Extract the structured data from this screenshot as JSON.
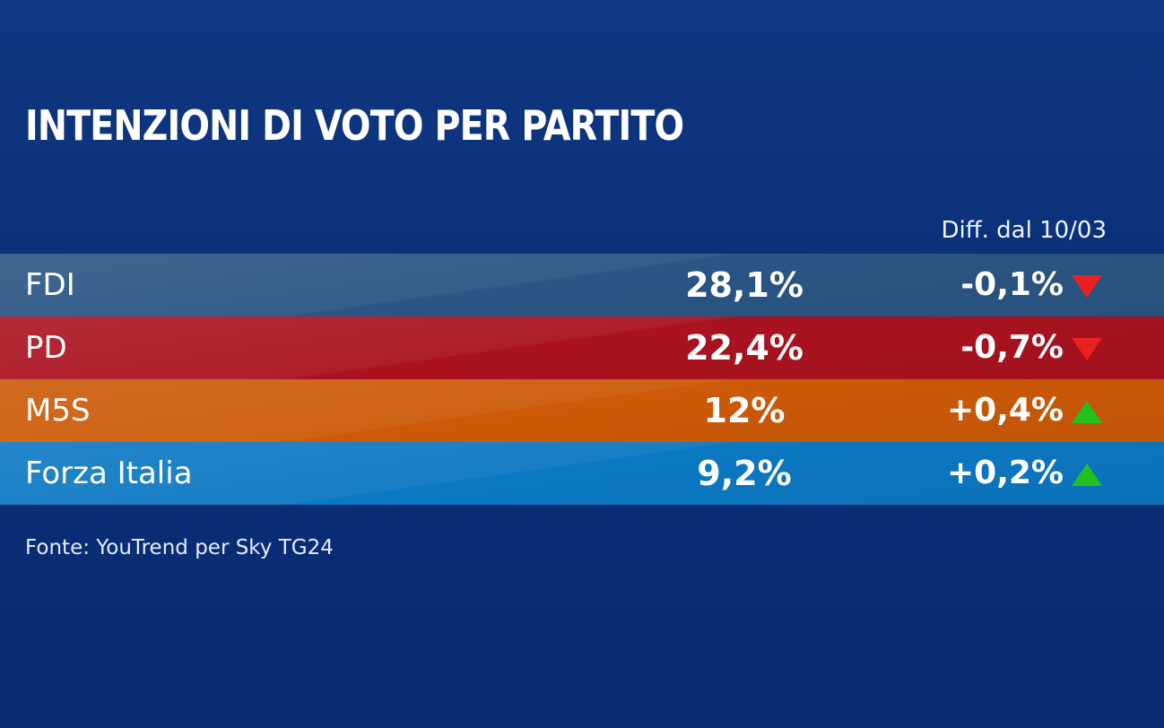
{
  "chart_data": {
    "type": "table",
    "title": "INTENZIONI DI VOTO PER PARTITO",
    "diff_header": "Diff. dal 10/03",
    "source": "Fonte: YouTrend per Sky TG24",
    "rows": [
      {
        "party": "FDI",
        "value_label": "28,1%",
        "value": 28.1,
        "diff_label": "-0,1%",
        "diff": -0.1,
        "trend": "down",
        "color": "#2a5584"
      },
      {
        "party": "PD",
        "value_label": "22,4%",
        "value": 22.4,
        "diff_label": "-0,7%",
        "diff": -0.7,
        "trend": "down",
        "color": "#ab1220"
      },
      {
        "party": "M5S",
        "value_label": "12%",
        "value": 12,
        "diff_label": "+0,4%",
        "diff": 0.4,
        "trend": "up",
        "color": "#cc5a08"
      },
      {
        "party": "Forza Italia",
        "value_label": "9,2%",
        "value": 9.2,
        "diff_label": "+0,2%",
        "diff": 0.2,
        "trend": "up",
        "color": "#0b78c2"
      }
    ]
  },
  "colors": {
    "background": "#0c3179",
    "trend_down": "#e8221e",
    "trend_up": "#21c21f"
  },
  "icons": {
    "down": "triangle-down-icon",
    "up": "triangle-up-icon"
  }
}
